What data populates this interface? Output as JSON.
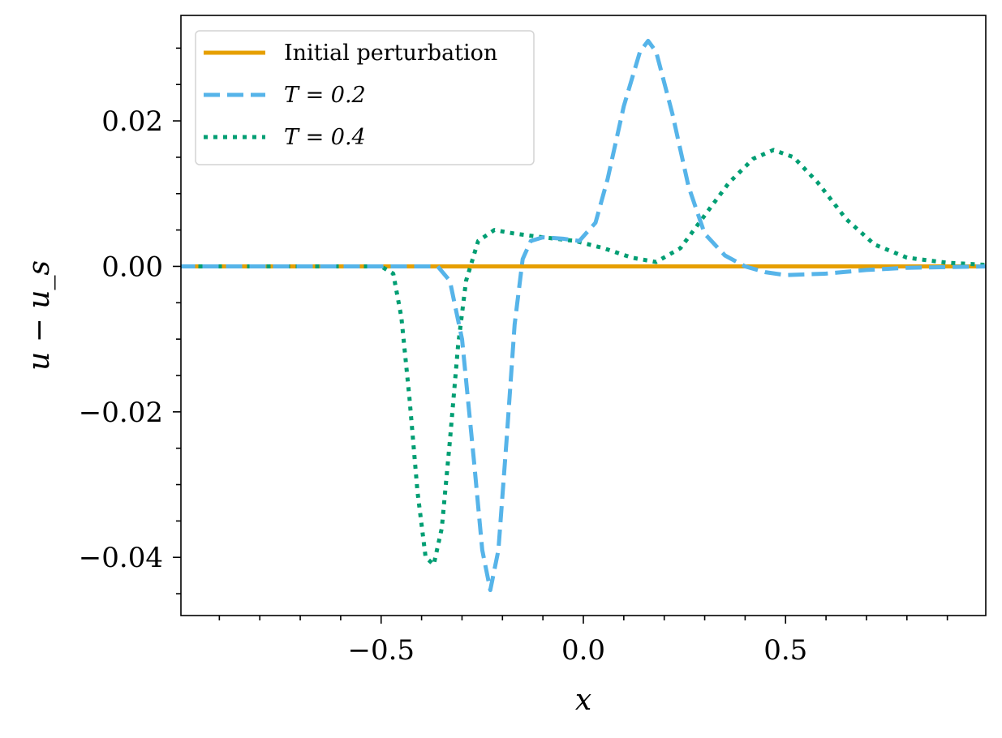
{
  "chart_data": {
    "type": "line",
    "xlabel": "x",
    "ylabel": "u − u_s",
    "xlim": [
      -0.995,
      0.995
    ],
    "ylim": [
      -0.048,
      0.0345
    ],
    "xticks": [
      -0.5,
      0.0,
      0.5
    ],
    "xtick_labels": [
      "−0.5",
      "0.0",
      "0.5"
    ],
    "yticks": [
      -0.04,
      -0.02,
      0.0,
      0.02
    ],
    "ytick_labels": [
      "−0.04",
      "−0.02",
      "0.00",
      "0.02"
    ],
    "legend_position": "top-left",
    "grid": false,
    "series": [
      {
        "name": "Initial perturbation",
        "style": "solid",
        "color": "#E69F00",
        "points": [
          [
            -1.0,
            0.0
          ],
          [
            1.0,
            0.0
          ]
        ]
      },
      {
        "name": "T = 0.2",
        "style": "dashed",
        "color": "#56B4E9",
        "points": [
          [
            -1.0,
            0.0
          ],
          [
            -0.4,
            0.0
          ],
          [
            -0.36,
            0.0
          ],
          [
            -0.33,
            -0.002
          ],
          [
            -0.3,
            -0.01
          ],
          [
            -0.27,
            -0.027
          ],
          [
            -0.25,
            -0.039
          ],
          [
            -0.23,
            -0.0445
          ],
          [
            -0.21,
            -0.039
          ],
          [
            -0.19,
            -0.024
          ],
          [
            -0.17,
            -0.008
          ],
          [
            -0.15,
            0.001
          ],
          [
            -0.13,
            0.0035
          ],
          [
            -0.1,
            0.004
          ],
          [
            -0.05,
            0.0038
          ],
          [
            -0.01,
            0.0035
          ],
          [
            0.03,
            0.006
          ],
          [
            0.06,
            0.012
          ],
          [
            0.1,
            0.022
          ],
          [
            0.14,
            0.0295
          ],
          [
            0.16,
            0.031
          ],
          [
            0.18,
            0.0295
          ],
          [
            0.22,
            0.021
          ],
          [
            0.26,
            0.011
          ],
          [
            0.3,
            0.0045
          ],
          [
            0.35,
            0.0015
          ],
          [
            0.4,
            0.0
          ],
          [
            0.45,
            -0.0008
          ],
          [
            0.5,
            -0.0012
          ],
          [
            0.6,
            -0.001
          ],
          [
            0.7,
            -0.0005
          ],
          [
            0.8,
            -0.0002
          ],
          [
            1.0,
            0.0
          ]
        ]
      },
      {
        "name": "T = 0.4",
        "style": "dotted",
        "color": "#009E73",
        "points": [
          [
            -1.0,
            0.0
          ],
          [
            -0.5,
            0.0
          ],
          [
            -0.47,
            -0.001
          ],
          [
            -0.45,
            -0.007
          ],
          [
            -0.43,
            -0.018
          ],
          [
            -0.41,
            -0.031
          ],
          [
            -0.39,
            -0.04
          ],
          [
            -0.37,
            -0.041
          ],
          [
            -0.35,
            -0.036
          ],
          [
            -0.33,
            -0.024
          ],
          [
            -0.31,
            -0.011
          ],
          [
            -0.29,
            -0.002
          ],
          [
            -0.26,
            0.0035
          ],
          [
            -0.22,
            0.005
          ],
          [
            -0.17,
            0.0045
          ],
          [
            -0.1,
            0.004
          ],
          [
            -0.02,
            0.0035
          ],
          [
            0.05,
            0.0025
          ],
          [
            0.12,
            0.0012
          ],
          [
            0.18,
            0.0006
          ],
          [
            0.24,
            0.0025
          ],
          [
            0.3,
            0.007
          ],
          [
            0.36,
            0.0115
          ],
          [
            0.42,
            0.0148
          ],
          [
            0.47,
            0.016
          ],
          [
            0.52,
            0.015
          ],
          [
            0.58,
            0.0115
          ],
          [
            0.65,
            0.0065
          ],
          [
            0.72,
            0.003
          ],
          [
            0.8,
            0.0012
          ],
          [
            0.9,
            0.0005
          ],
          [
            1.0,
            0.0002
          ]
        ]
      }
    ]
  }
}
